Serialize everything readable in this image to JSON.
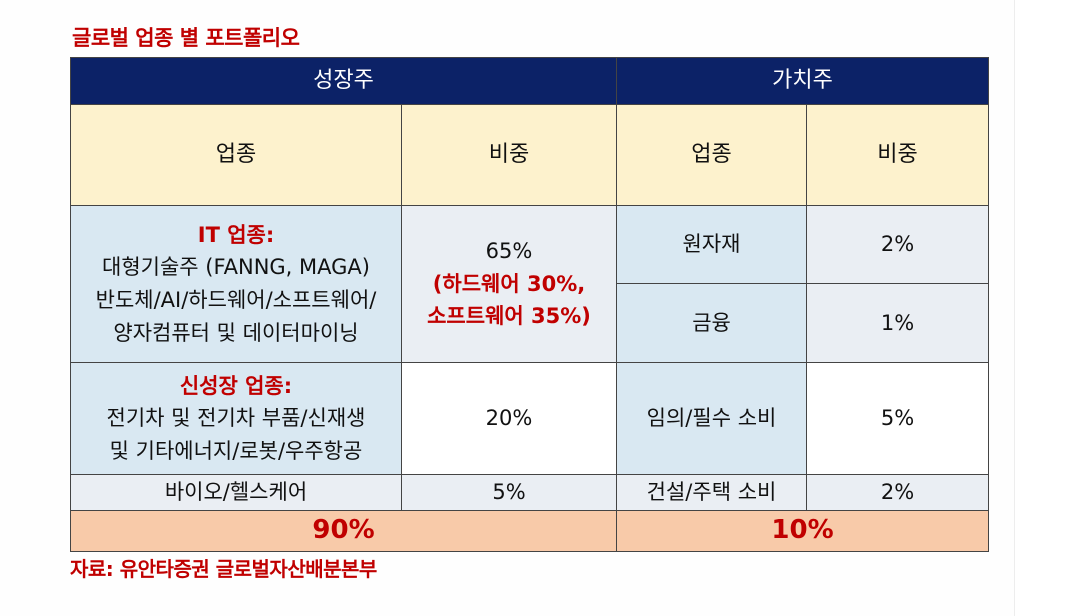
{
  "title": "글로벌 업종 별 포트폴리오",
  "source": "자료: 유안타증권 글로벌자산배분본부",
  "headers": {
    "growth": "성장주",
    "value": "가치주",
    "sector": "업종",
    "weight": "비중"
  },
  "growth_rows": [
    {
      "category": "IT 업종:",
      "lines": [
        "대형기술주 (FANNG, MAGA)",
        "반도체/AI/하드웨어/소프트웨어/",
        "양자컴퓨터 및 데이터마이닝"
      ],
      "weight_main": "65%",
      "weight_detail_1": "(하드웨어 30%,",
      "weight_detail_2": "소프트웨어 35%)"
    },
    {
      "category": "신성장 업종:",
      "lines": [
        "전기차 및 전기차 부품/신재생",
        "및 기타에너지/로봇/우주항공"
      ],
      "weight_main": "20%"
    },
    {
      "sector": "바이오/헬스케어",
      "weight_main": "5%"
    }
  ],
  "value_rows": [
    {
      "sector": "원자재",
      "weight": "2%"
    },
    {
      "sector": "금융",
      "weight": "1%"
    },
    {
      "sector": "임의/필수 소비",
      "weight": "5%"
    },
    {
      "sector": "건설/주택 소비",
      "weight": "2%"
    }
  ],
  "totals": {
    "growth": "90%",
    "value": "10%"
  },
  "colors": {
    "header_navy": "#0c2267",
    "subheader_yellow": "#fdf2cd",
    "cell_blue": "#d9e8f2",
    "total_orange": "#f8caa9",
    "accent_red": "#c00000"
  }
}
